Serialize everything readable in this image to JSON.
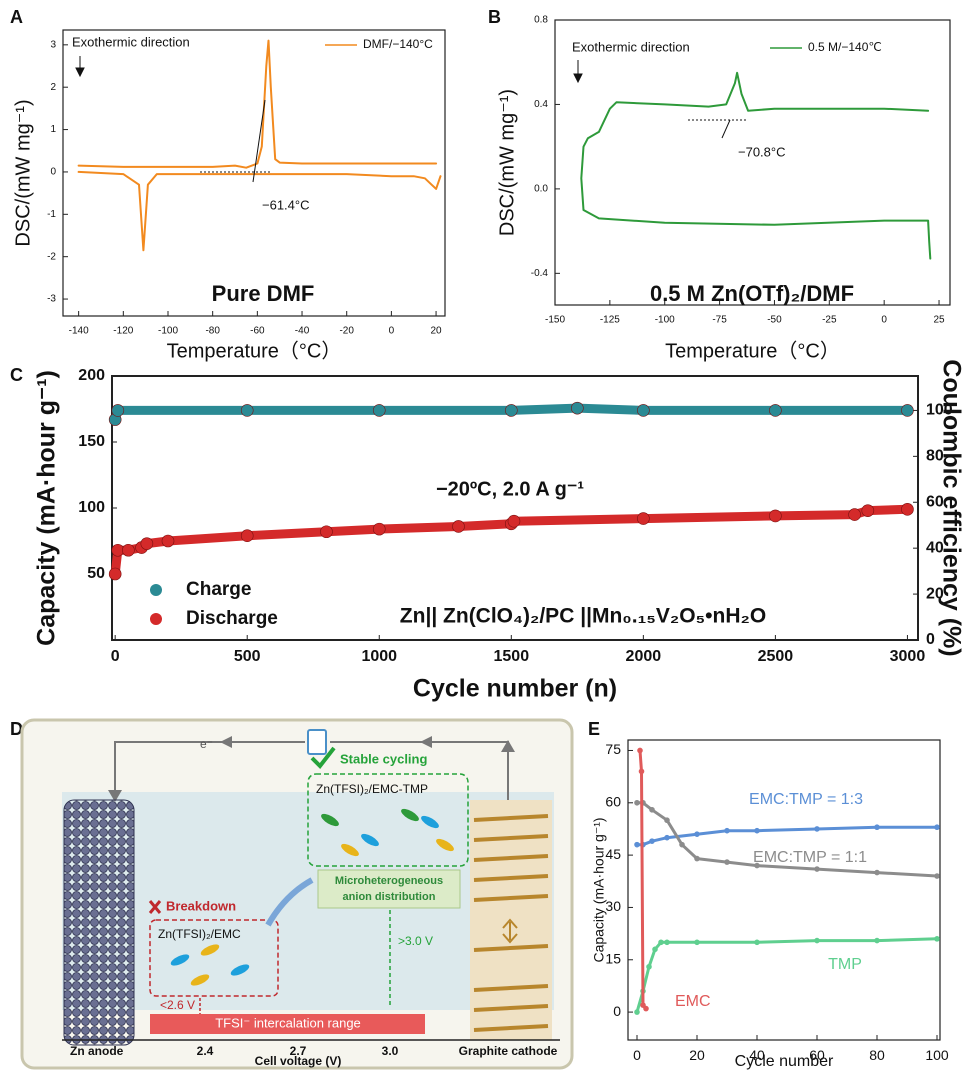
{
  "chart_data": [
    {
      "type": "line",
      "panel": "A",
      "xlabel": "Temperature（°C）",
      "ylabel": "DSC/(mW mg⁻¹)",
      "xlim": [
        -147,
        24
      ],
      "ylim": [
        -3.4,
        3.35
      ],
      "xticks": [
        -140,
        -120,
        -100,
        -80,
        -60,
        -40,
        -20,
        0,
        20
      ],
      "yticks": [
        -3,
        -2,
        -1,
        0,
        1,
        2,
        3
      ],
      "series": [
        {
          "name": "DMF/−140°C",
          "color": "#f28a1f",
          "x": [
            -140,
            -120,
            -100,
            -80,
            -70,
            -65,
            -60,
            -58,
            -56,
            -55,
            -54,
            -52,
            -50,
            -40,
            -20,
            0,
            20,
            null,
            -140,
            -120,
            -113,
            -111,
            -109,
            -105,
            -80,
            -60,
            -40,
            -20,
            0,
            10,
            15,
            18,
            20,
            22
          ],
          "values": [
            0.15,
            0.12,
            0.12,
            0.12,
            0.15,
            0.1,
            0.2,
            0.6,
            2.5,
            3.1,
            2.0,
            0.3,
            0.22,
            0.2,
            0.2,
            0.2,
            0.2,
            null,
            0.0,
            -0.05,
            -0.3,
            -1.85,
            -0.3,
            -0.05,
            -0.05,
            -0.05,
            -0.05,
            -0.05,
            -0.1,
            -0.1,
            -0.15,
            -0.3,
            -0.4,
            -0.1
          ]
        }
      ],
      "annotations": [
        "Exothermic direction",
        "−61.4°C",
        "Pure DMF"
      ]
    },
    {
      "type": "line",
      "panel": "B",
      "xlabel": "Temperature（°C）",
      "ylabel": "DSC/(mW mg⁻¹)",
      "xlim": [
        -150,
        30
      ],
      "ylim": [
        -0.55,
        0.8
      ],
      "xticks": [
        -150,
        -125,
        -100,
        -75,
        -50,
        -25,
        0,
        25
      ],
      "yticks": [
        -0.4,
        {
          "value": 0,
          "label": "0.0"
        },
        0.4,
        0.8
      ],
      "series": [
        {
          "name": "0.5 M/−140℃",
          "color": "#2e9a3a",
          "x": [
            21,
            20.5,
            20,
            0,
            -50,
            -100,
            -130,
            -137,
            -138,
            -137,
            -135,
            -130,
            -125,
            -122,
            -100,
            -80,
            -72,
            -68,
            -67,
            -65,
            -62,
            -50,
            -25,
            0,
            20
          ],
          "values": [
            -0.33,
            -0.25,
            -0.15,
            -0.15,
            -0.17,
            -0.16,
            -0.14,
            -0.1,
            0.05,
            0.2,
            0.24,
            0.27,
            0.38,
            0.41,
            0.4,
            0.39,
            0.4,
            0.5,
            0.55,
            0.45,
            0.37,
            0.38,
            0.38,
            0.38,
            0.37
          ]
        }
      ],
      "annotations": [
        "Exothermic direction",
        "−70.8°C",
        "0.5 M Zn(OTf)₂/DMF"
      ]
    },
    {
      "type": "scatter",
      "panel": "C",
      "xlabel": "Cycle number (n)",
      "ylabel": "Capacity (mA·hour g⁻¹)",
      "y2label": "Coulombic efficiency (%)",
      "xlim": [
        -12,
        3040
      ],
      "ylim": [
        0,
        200
      ],
      "y2lim": [
        0,
        115
      ],
      "xticks": [
        0,
        500,
        1000,
        1500,
        2000,
        2500,
        3000
      ],
      "yticks": [
        50,
        100,
        150,
        200
      ],
      "y2ticks": [
        0,
        20,
        40,
        60,
        80,
        100
      ],
      "series": [
        {
          "name": "Charge",
          "color": "#2b8a94",
          "axis": "y2",
          "x": [
            0,
            10,
            500,
            1000,
            1500,
            1750,
            2000,
            2500,
            3000
          ],
          "values": [
            96,
            100,
            100,
            100,
            100,
            101,
            100,
            100,
            100
          ]
        },
        {
          "name": "Discharge",
          "color": "#d42a2a",
          "x": [
            0,
            10,
            50,
            100,
            120,
            200,
            500,
            800,
            1000,
            1300,
            1500,
            1510,
            2000,
            2500,
            2800,
            2850,
            3000
          ],
          "values": [
            50,
            68,
            68,
            70,
            73,
            75,
            79,
            82,
            84,
            86,
            88,
            90,
            92,
            94,
            95,
            98,
            99
          ]
        }
      ],
      "annotations": [
        "−20ºC, 2.0 A g⁻¹",
        "Zn|| Zn(ClO₄)₂/PC ||Mn₀.₁₅V₂O₅•nH₂O"
      ]
    },
    {
      "type": "line",
      "panel": "E",
      "xlabel": "Cycle number",
      "ylabel": "Capacity (mA·hour g⁻¹)",
      "xlim": [
        -3,
        101
      ],
      "ylim": [
        -8,
        78
      ],
      "xticks": [
        0,
        20,
        40,
        60,
        80,
        100
      ],
      "yticks": [
        0,
        15,
        30,
        45,
        60,
        75
      ],
      "series": [
        {
          "name": "EMC:TMP = 1:3",
          "color": "#5b8fd6",
          "x": [
            0,
            2,
            5,
            10,
            20,
            30,
            40,
            60,
            80,
            100
          ],
          "values": [
            48,
            48,
            49,
            50,
            51,
            52,
            52,
            52.5,
            53,
            53
          ]
        },
        {
          "name": "EMC:TMP = 1:1",
          "color": "#8c8c8c",
          "x": [
            0,
            2,
            5,
            10,
            15,
            20,
            30,
            40,
            60,
            80,
            100
          ],
          "values": [
            60,
            60,
            58,
            55,
            48,
            44,
            43,
            42,
            41,
            40,
            39
          ]
        },
        {
          "name": "TMP",
          "color": "#5fcf8f",
          "x": [
            0,
            2,
            4,
            6,
            8,
            10,
            20,
            40,
            60,
            80,
            100
          ],
          "values": [
            0,
            6,
            13,
            18,
            20,
            20,
            20,
            20,
            20.5,
            20.5,
            21
          ]
        },
        {
          "name": "EMC",
          "color": "#e05a5a",
          "x": [
            1,
            1.5,
            2,
            3
          ],
          "values": [
            75,
            69,
            2,
            1
          ]
        }
      ]
    }
  ],
  "diagram": {
    "panel": "D",
    "electron": "e⁻",
    "stable": "Stable cycling",
    "ok_electrolyte": "Zn(TFSI)₂/EMC-TMP",
    "breakdown": "Breakdown",
    "bad_electrolyte": "Zn(TFSI)₂/EMC",
    "micro": [
      "Microheterogeneous",
      "anion distribution"
    ],
    "low_v": "<2.6 V",
    "high_v": ">3.0 V",
    "range": "TFSI⁻ intercalation range",
    "anode": "Zn anode",
    "cathode": "Graphite cathode",
    "ticks": [
      "2.4",
      "2.7",
      "3.0"
    ],
    "axis_label": "Cell voltage (V)"
  }
}
